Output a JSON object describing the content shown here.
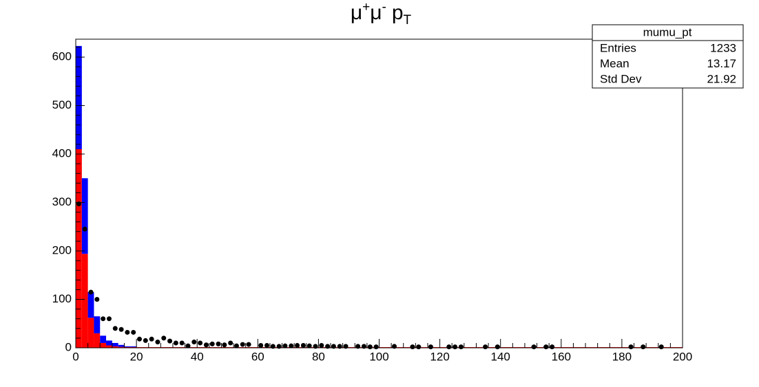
{
  "chart_data": {
    "type": "histogram",
    "title": {
      "base1": "μ",
      "sup1": "+",
      "base2": "μ",
      "sup2": "-",
      "base3": "p",
      "sub": "T"
    },
    "bins": [
      0,
      2,
      4,
      6,
      8,
      10,
      12,
      14,
      16,
      18,
      20,
      22,
      24,
      26,
      28,
      30,
      32,
      34,
      36,
      38,
      40,
      42,
      44,
      46,
      48,
      50,
      52,
      54,
      56,
      58,
      60,
      62,
      64,
      66,
      68,
      70,
      72,
      74,
      76,
      78,
      80,
      82,
      84,
      86,
      88,
      90,
      92,
      94,
      96,
      98,
      100,
      102,
      104,
      106,
      108,
      110,
      112,
      114,
      116,
      118,
      120,
      122,
      124,
      126,
      128,
      130,
      132,
      134,
      136,
      138,
      140,
      142,
      144,
      146,
      148,
      150,
      152,
      154,
      156,
      158,
      160,
      162,
      164,
      166,
      168,
      170,
      172,
      174,
      176,
      178,
      180,
      182,
      184,
      186,
      188,
      190,
      192,
      194,
      196,
      198,
      200
    ],
    "series": [
      {
        "color": "#ff0000",
        "values": [
          410,
          194,
          62,
          30,
          10,
          5,
          3,
          2,
          1,
          1,
          0,
          0,
          0,
          0,
          0,
          0,
          0,
          0,
          0,
          0,
          0,
          0,
          0,
          0,
          0,
          0,
          0,
          0,
          0,
          0,
          0,
          0,
          0,
          0,
          0,
          0,
          0,
          0,
          0,
          0,
          0,
          0,
          0,
          0,
          0,
          0,
          0,
          0,
          0,
          0,
          0,
          0,
          0,
          0,
          0,
          0,
          0,
          0,
          0,
          0,
          0,
          0,
          0,
          0,
          0,
          0,
          0,
          0,
          0,
          0,
          0,
          0,
          0,
          0,
          0,
          0,
          0,
          0,
          0,
          0,
          0,
          0,
          0,
          0,
          0,
          0,
          0,
          0,
          0,
          0,
          0,
          0,
          0,
          0,
          0,
          0,
          0,
          0,
          0,
          0
        ]
      },
      {
        "color": "#0000ff",
        "values": [
          213,
          156,
          53,
          35,
          15,
          10,
          7,
          4,
          2,
          2,
          1,
          1,
          1,
          1,
          1,
          0,
          0,
          0,
          0,
          0,
          0,
          0,
          0,
          0,
          0,
          0,
          0,
          0,
          0,
          0,
          0,
          0,
          0,
          0,
          0,
          0,
          0,
          0,
          0,
          0,
          0,
          0,
          0,
          0,
          0,
          0,
          0,
          0,
          0,
          0,
          0,
          0,
          0,
          0,
          0,
          0,
          0,
          0,
          0,
          0,
          0,
          0,
          0,
          0,
          0,
          0,
          0,
          0,
          0,
          0,
          0,
          0,
          0,
          0,
          0,
          2,
          0,
          2,
          0,
          0,
          0,
          0,
          0,
          0,
          0,
          0,
          0,
          0,
          0,
          0,
          0,
          0,
          0,
          0,
          0,
          0,
          0,
          0,
          0,
          0
        ]
      }
    ],
    "points": {
      "color": "#000000",
      "values": [
        297,
        245,
        115,
        100,
        60,
        60,
        40,
        38,
        32,
        32,
        18,
        15,
        18,
        12,
        20,
        14,
        10,
        10,
        4,
        12,
        10,
        6,
        8,
        8,
        6,
        10,
        4,
        7,
        7,
        null,
        5,
        5,
        3,
        3,
        4,
        4,
        5,
        5,
        4,
        3,
        5,
        3,
        3,
        3,
        3,
        null,
        3,
        3,
        2,
        2,
        null,
        null,
        3,
        null,
        null,
        2,
        2,
        null,
        2,
        null,
        null,
        2,
        2,
        2,
        null,
        null,
        null,
        2,
        null,
        2,
        null,
        null,
        null,
        null,
        null,
        2,
        null,
        2,
        2,
        null,
        null,
        null,
        null,
        null,
        null,
        null,
        null,
        null,
        null,
        null,
        null,
        2,
        null,
        2,
        null,
        null,
        2,
        null,
        null,
        null
      ]
    },
    "xlim": [
      0,
      200
    ],
    "ylim": [
      0,
      637
    ],
    "xticks": [
      0,
      20,
      40,
      60,
      80,
      100,
      120,
      140,
      160,
      180,
      200
    ],
    "yticks": [
      0,
      100,
      200,
      300,
      400,
      500,
      600
    ],
    "stats": {
      "title": "mumu_pt",
      "rows": [
        [
          "Entries",
          1233
        ],
        [
          "Mean",
          13.17
        ],
        [
          "Std Dev",
          21.92
        ]
      ]
    }
  }
}
